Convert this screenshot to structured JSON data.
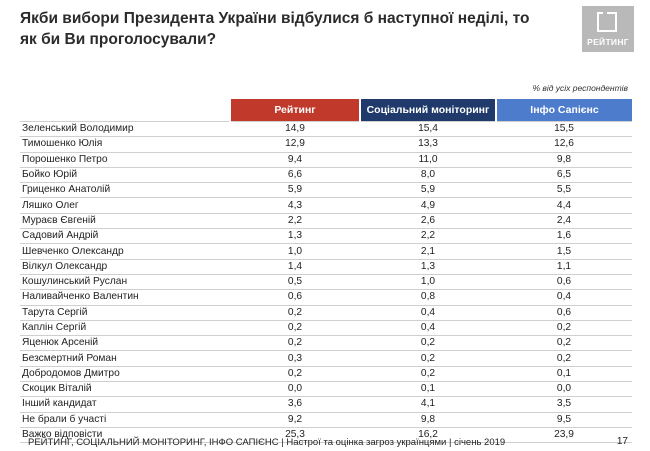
{
  "title": "Якби вибори Президента України відбулися б наступної неділі, то як би Ви проголосували?",
  "logo": {
    "text": "РЕЙТИНГ"
  },
  "note": "% від усіх респондентів",
  "footer": "РЕЙТИНГ, СОЦІАЛЬНИЙ МОНІТОРИНГ, ІНФО САПІЄНС | Настрої та оцінка загроз українцями | січень 2019",
  "page_number": "17",
  "colors": {
    "series1": "#c0392b",
    "series2": "#1f3a6b",
    "series3": "#4e7ccc"
  },
  "chart_data": {
    "type": "table",
    "columns": [
      "Рейтинг",
      "Соціальний моніторинг",
      "Інфо Сапієнс"
    ],
    "rows": [
      {
        "name": "Зеленський Володимир",
        "values": [
          "14,9",
          "15,4",
          "15,5"
        ]
      },
      {
        "name": "Тимошенко Юлія",
        "values": [
          "12,9",
          "13,3",
          "12,6"
        ]
      },
      {
        "name": "Порошенко Петро",
        "values": [
          "9,4",
          "11,0",
          "9,8"
        ]
      },
      {
        "name": "Бойко Юрій",
        "values": [
          "6,6",
          "8,0",
          "6,5"
        ]
      },
      {
        "name": "Гриценко Анатолій",
        "values": [
          "5,9",
          "5,9",
          "5,5"
        ]
      },
      {
        "name": "Ляшко Олег",
        "values": [
          "4,3",
          "4,9",
          "4,4"
        ]
      },
      {
        "name": "Мураєв Євгеній",
        "values": [
          "2,2",
          "2,6",
          "2,4"
        ]
      },
      {
        "name": "Садовий Андрій",
        "values": [
          "1,3",
          "2,2",
          "1,6"
        ]
      },
      {
        "name": "Шевченко Олександр",
        "values": [
          "1,0",
          "2,1",
          "1,5"
        ]
      },
      {
        "name": "Вілкул Олександр",
        "values": [
          "1,4",
          "1,3",
          "1,1"
        ]
      },
      {
        "name": "Кошулинський Руслан",
        "values": [
          "0,5",
          "1,0",
          "0,6"
        ]
      },
      {
        "name": "Наливайченко Валентин",
        "values": [
          "0,6",
          "0,8",
          "0,4"
        ]
      },
      {
        "name": "Тарута Сергій",
        "values": [
          "0,2",
          "0,4",
          "0,6"
        ]
      },
      {
        "name": "Каплін Сергій",
        "values": [
          "0,2",
          "0,4",
          "0,2"
        ]
      },
      {
        "name": "Яценюк Арсеній",
        "values": [
          "0,2",
          "0,2",
          "0,2"
        ]
      },
      {
        "name": "Безсмертний Роман",
        "values": [
          "0,3",
          "0,2",
          "0,2"
        ]
      },
      {
        "name": "Добродомов Дмитро",
        "values": [
          "0,2",
          "0,2",
          "0,1"
        ]
      },
      {
        "name": "Скоцик Віталій",
        "values": [
          "0,0",
          "0,1",
          "0,0"
        ]
      },
      {
        "name": "Інший кандидат",
        "values": [
          "3,6",
          "4,1",
          "3,5"
        ]
      },
      {
        "name": "Не брали б участі",
        "values": [
          "9,2",
          "9,8",
          "9,5"
        ]
      },
      {
        "name": "Важко відповісти",
        "values": [
          "25,3",
          "16,2",
          "23,9"
        ]
      }
    ]
  }
}
